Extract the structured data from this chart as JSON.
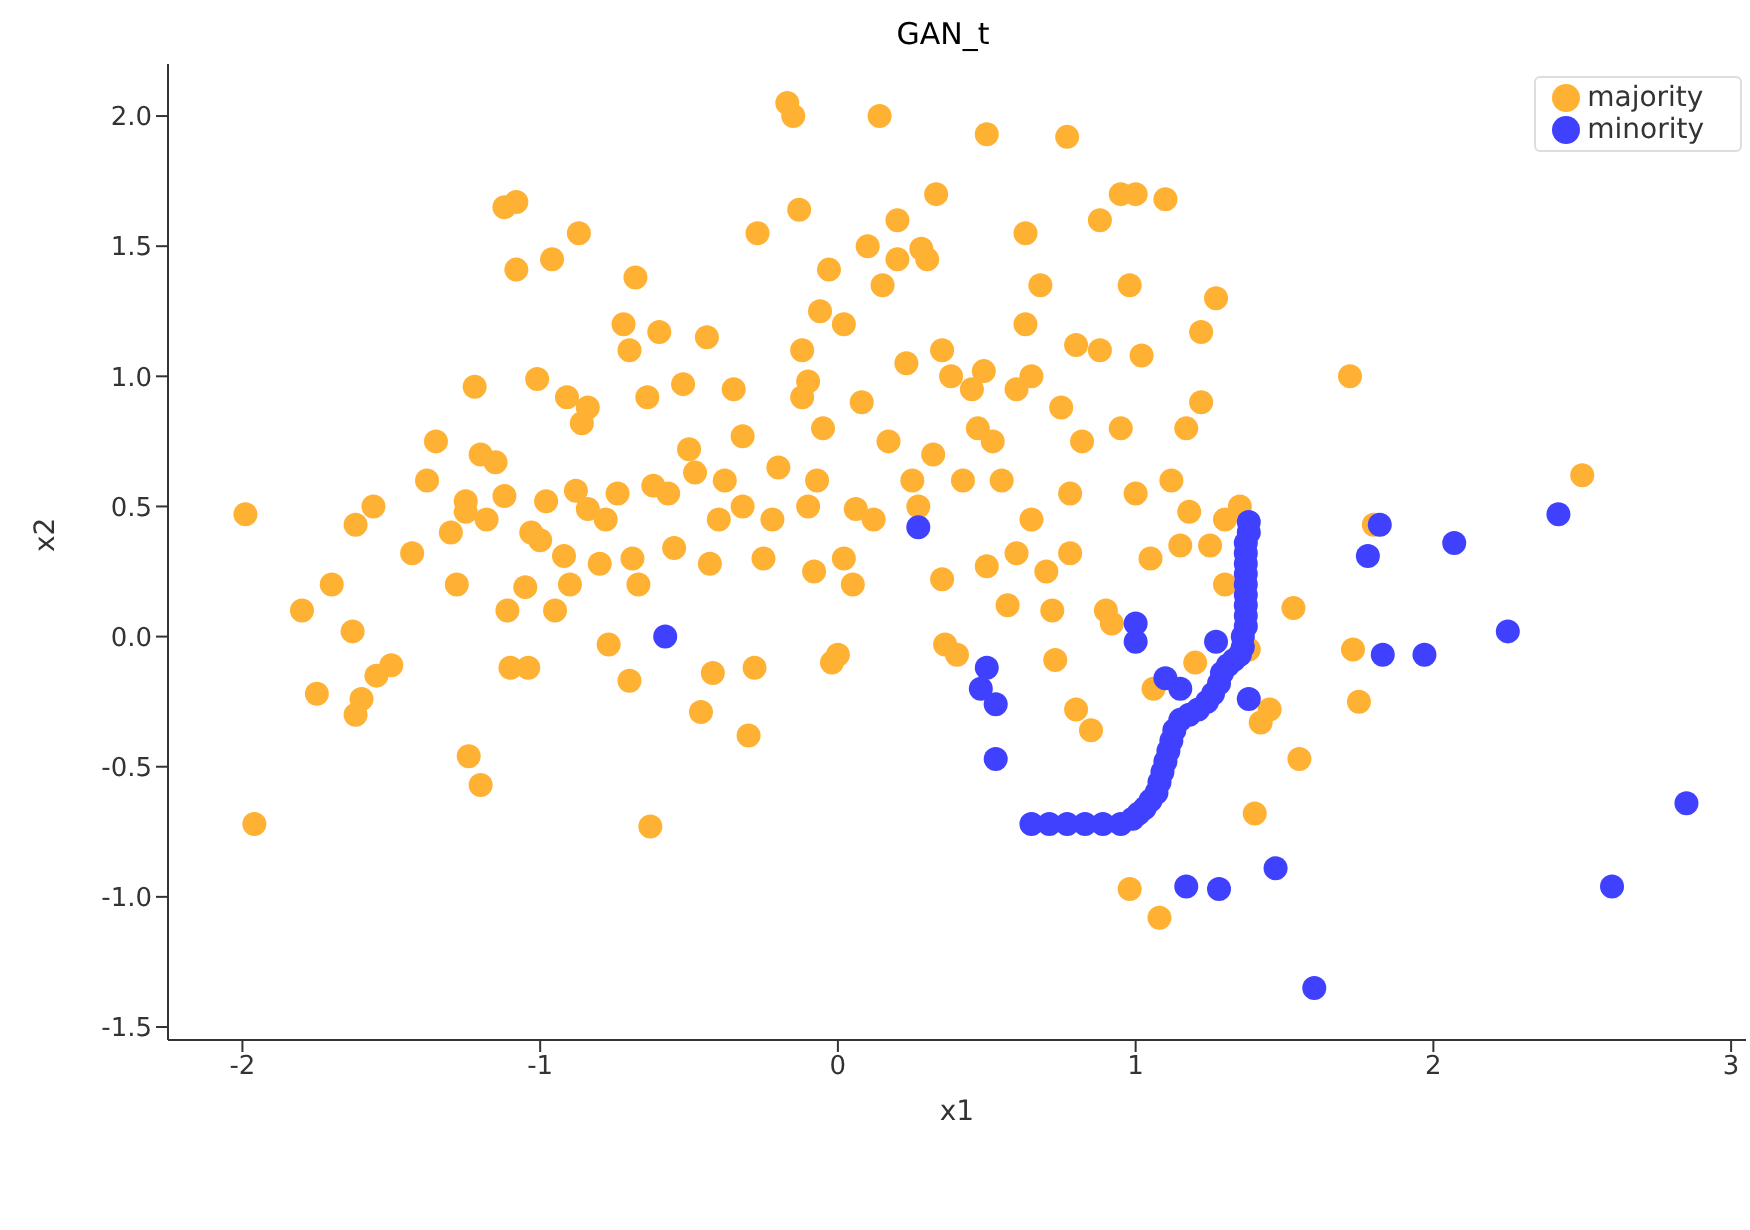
{
  "chart_data": {
    "type": "scatter",
    "title": "GAN_t",
    "xlabel": "x1",
    "ylabel": "x2",
    "xlim": [
      -2.25,
      3.05
    ],
    "xticks": [
      -2,
      -1,
      0,
      1,
      2,
      3
    ],
    "ylim": [
      -1.55,
      2.2
    ],
    "yticks": [
      {
        "value": -1.5,
        "label": "-1.5"
      },
      {
        "value": -1,
        "label": "-1.0"
      },
      {
        "value": -0.5,
        "label": "-0.5"
      },
      {
        "value": 0,
        "label": "0.0"
      },
      {
        "value": 0.5,
        "label": "0.5"
      },
      {
        "value": 1,
        "label": "1.0"
      },
      {
        "value": 1.5,
        "label": "1.5"
      },
      {
        "value": 2,
        "label": "2.0"
      }
    ],
    "grid": false,
    "legend": "top right",
    "marker": "circle",
    "series": [
      {
        "name": "majority",
        "color": "#ffb133",
        "x": [
          -1.99,
          -1.96,
          -1.8,
          -1.75,
          -1.7,
          -1.63,
          -1.62,
          -1.6,
          -1.62,
          -1.56,
          -1.55,
          -1.5,
          -1.43,
          -1.38,
          -1.35,
          -1.3,
          -1.28,
          -1.25,
          -1.25,
          -1.24,
          -1.22,
          -1.2,
          -1.2,
          -1.18,
          -1.15,
          -1.12,
          -1.11,
          -1.12,
          -1.08,
          -1.1,
          -1.08,
          -1.05,
          -1.04,
          -1.03,
          -1.01,
          -1.0,
          -0.98,
          -0.96,
          -0.95,
          -0.92,
          -0.91,
          -0.9,
          -0.88,
          -0.87,
          -0.86,
          -0.84,
          -0.84,
          -0.8,
          -0.78,
          -0.77,
          -0.74,
          -0.72,
          -0.7,
          -0.69,
          -0.68,
          -0.7,
          -0.67,
          -0.64,
          -0.62,
          -0.63,
          -0.6,
          -0.57,
          -0.55,
          -0.52,
          -0.5,
          -0.48,
          -0.46,
          -0.44,
          -0.43,
          -0.42,
          -0.4,
          -0.38,
          -0.35,
          -0.32,
          -0.3,
          -0.28,
          -0.27,
          -0.25,
          -0.22,
          -0.2,
          -0.17,
          -0.15,
          -0.13,
          -0.12,
          -0.1,
          -0.1,
          -0.08,
          -0.07,
          -0.06,
          -0.05,
          -0.03,
          -0.02,
          0.0,
          0.02,
          0.02,
          0.05,
          0.08,
          0.1,
          0.12,
          0.14,
          0.15,
          0.17,
          0.2,
          0.2,
          0.23,
          0.25,
          0.27,
          0.28,
          0.3,
          0.32,
          0.33,
          0.35,
          0.35,
          0.36,
          0.38,
          0.4,
          0.42,
          0.45,
          0.47,
          0.49,
          0.5,
          0.52,
          0.55,
          0.57,
          0.6,
          0.63,
          0.63,
          0.65,
          0.65,
          0.68,
          0.7,
          0.72,
          0.73,
          0.75,
          0.77,
          0.78,
          0.8,
          0.8,
          0.82,
          0.85,
          0.88,
          0.88,
          0.9,
          0.92,
          0.95,
          0.98,
          0.98,
          1.0,
          1.02,
          1.05,
          1.06,
          1.08,
          1.1,
          1.12,
          1.15,
          1.17,
          1.18,
          1.2,
          1.22,
          1.25,
          1.27,
          1.3,
          1.35,
          1.38,
          1.42,
          1.45,
          1.4,
          1.53,
          1.55,
          1.72,
          1.73,
          1.75,
          1.8,
          2.5,
          1.0,
          0.78,
          0.6,
          -0.12,
          -0.32,
          0.06,
          0.5,
          1.22,
          1.3,
          0.95
        ],
        "values": [
          0.47,
          -0.72,
          0.1,
          -0.22,
          0.2,
          0.02,
          0.43,
          -0.24,
          -0.3,
          0.5,
          -0.15,
          -0.11,
          0.32,
          0.6,
          0.75,
          0.4,
          0.2,
          0.52,
          0.48,
          -0.46,
          0.96,
          0.7,
          -0.57,
          0.45,
          0.67,
          0.54,
          0.1,
          1.65,
          1.67,
          -0.12,
          1.41,
          0.19,
          -0.12,
          0.4,
          0.99,
          0.37,
          0.52,
          1.45,
          0.1,
          0.31,
          0.92,
          0.2,
          0.56,
          1.55,
          0.82,
          0.88,
          0.49,
          0.28,
          0.45,
          -0.03,
          0.55,
          1.2,
          1.1,
          0.3,
          1.38,
          -0.17,
          0.2,
          0.92,
          0.58,
          -0.73,
          1.17,
          0.55,
          0.34,
          0.97,
          0.72,
          0.63,
          -0.29,
          1.15,
          0.28,
          -0.14,
          0.45,
          0.6,
          0.95,
          0.5,
          -0.38,
          -0.12,
          1.55,
          0.3,
          0.45,
          0.65,
          2.05,
          2.0,
          1.64,
          1.1,
          0.98,
          0.5,
          0.25,
          0.6,
          1.25,
          0.8,
          1.41,
          -0.1,
          -0.07,
          1.2,
          0.3,
          0.2,
          0.9,
          1.5,
          0.45,
          2.0,
          1.35,
          0.75,
          1.6,
          1.45,
          1.05,
          0.6,
          0.5,
          1.49,
          1.45,
          0.7,
          1.7,
          1.1,
          0.22,
          -0.03,
          1.0,
          -0.07,
          0.6,
          0.95,
          0.8,
          1.02,
          1.93,
          0.75,
          0.6,
          0.12,
          0.95,
          1.2,
          1.55,
          1.0,
          0.45,
          1.35,
          0.25,
          0.1,
          -0.09,
          0.88,
          1.92,
          0.55,
          1.12,
          -0.28,
          0.75,
          -0.36,
          1.1,
          1.6,
          0.1,
          0.05,
          1.7,
          -0.97,
          1.35,
          1.7,
          1.08,
          0.3,
          -0.2,
          -1.08,
          1.68,
          0.6,
          0.35,
          0.8,
          0.48,
          -0.1,
          1.17,
          0.35,
          1.3,
          0.45,
          0.5,
          -0.05,
          -0.33,
          -0.28,
          -0.68,
          0.11,
          -0.47,
          1.0,
          -0.05,
          -0.25,
          0.43,
          0.62,
          0.55,
          0.32,
          0.32,
          0.92,
          0.77,
          0.49,
          0.27,
          0.9,
          0.2,
          0.8
        ]
      },
      {
        "name": "minority",
        "color": "#4040ff",
        "x": [
          -0.58,
          0.27,
          0.5,
          0.48,
          0.53,
          0.53,
          1.0,
          1.0,
          1.1,
          1.15,
          1.27,
          1.38,
          1.17,
          1.28,
          1.47,
          1.6,
          1.78,
          1.82,
          1.83,
          1.97,
          2.07,
          2.25,
          2.42,
          2.6,
          2.85,
          0.65,
          0.71,
          0.77,
          0.83,
          0.89,
          0.95,
          0.99,
          1.01,
          1.03,
          1.05,
          1.07,
          1.08,
          1.09,
          1.1,
          1.11,
          1.12,
          1.13,
          1.15,
          1.18,
          1.21,
          1.24,
          1.26,
          1.28,
          1.29,
          1.31,
          1.33,
          1.35,
          1.36,
          1.36,
          1.37,
          1.37,
          1.37,
          1.37,
          1.37,
          1.37,
          1.37,
          1.37,
          1.37,
          1.38,
          1.38
        ],
        "values": [
          0.0,
          0.42,
          -0.12,
          -0.2,
          -0.26,
          -0.47,
          0.05,
          -0.02,
          -0.16,
          -0.2,
          -0.02,
          -0.24,
          -0.96,
          -0.97,
          -0.89,
          -1.35,
          0.31,
          0.43,
          -0.07,
          -0.07,
          0.36,
          0.02,
          0.47,
          -0.96,
          -0.64,
          -0.72,
          -0.72,
          -0.72,
          -0.72,
          -0.72,
          -0.72,
          -0.7,
          -0.68,
          -0.66,
          -0.63,
          -0.6,
          -0.56,
          -0.52,
          -0.48,
          -0.44,
          -0.4,
          -0.36,
          -0.32,
          -0.3,
          -0.28,
          -0.25,
          -0.22,
          -0.18,
          -0.14,
          -0.11,
          -0.09,
          -0.07,
          -0.04,
          0.0,
          0.04,
          0.08,
          0.12,
          0.16,
          0.2,
          0.24,
          0.28,
          0.32,
          0.36,
          0.4,
          0.44
        ]
      }
    ]
  }
}
